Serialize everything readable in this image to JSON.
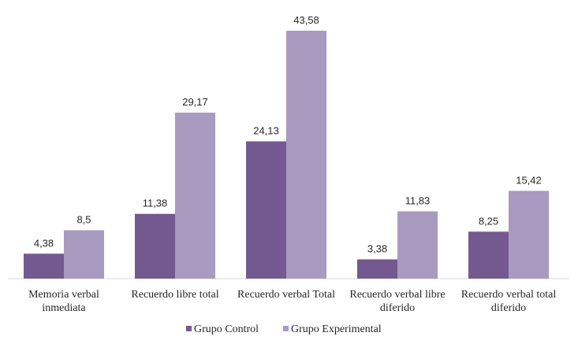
{
  "chart_data": {
    "type": "bar",
    "title": "",
    "xlabel": "",
    "ylabel": "",
    "ylim": [
      0,
      45
    ],
    "grid": false,
    "legend_position": "bottom",
    "categories": [
      [
        "Memoria verbal",
        "inmediata"
      ],
      [
        "Recuerdo libre total"
      ],
      [
        "Recuerdo verbal Total"
      ],
      [
        "Recuerdo verbal libre",
        "diferido"
      ],
      [
        "Recuerdo verbal total",
        "diferido"
      ]
    ],
    "series": [
      {
        "name": "Grupo Control",
        "color": "#735990",
        "values": [
          4.38,
          11.38,
          24.13,
          3.38,
          8.25
        ],
        "labels": [
          "4,38",
          "11,38",
          "24,13",
          "3,38",
          "8,25"
        ]
      },
      {
        "name": "Grupo Experimental",
        "color": "#a99ac0",
        "values": [
          8.5,
          29.17,
          43.58,
          11.83,
          15.42
        ],
        "labels": [
          "8,5",
          "29,17",
          "43,58",
          "11,83",
          "15,42"
        ]
      }
    ]
  }
}
